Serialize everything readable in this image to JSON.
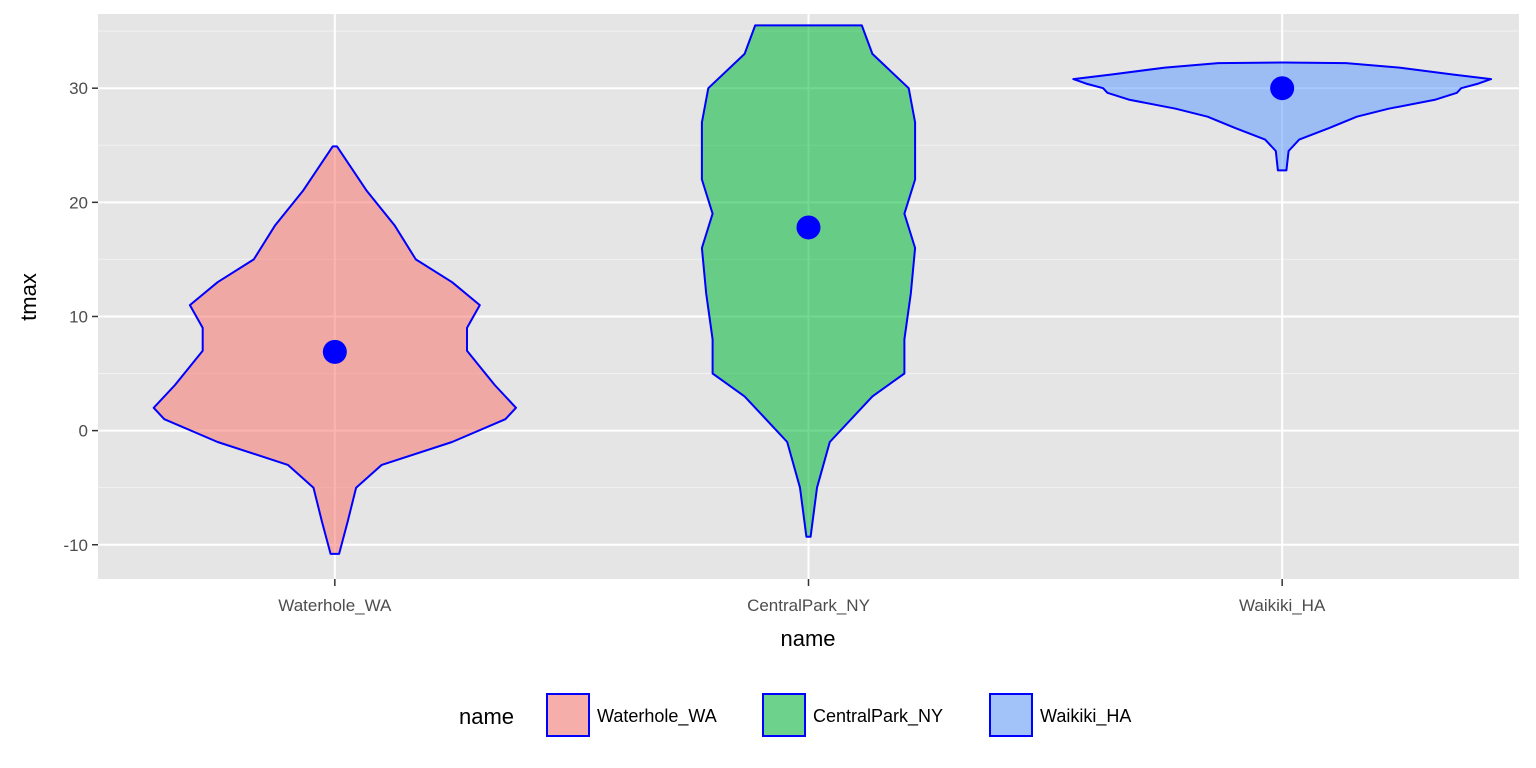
{
  "chart_data": {
    "type": "violin",
    "xlabel": "name",
    "ylabel": "tmax",
    "ylim": [
      -13,
      36.5
    ],
    "y_ticks": [
      -10,
      0,
      10,
      20,
      30
    ],
    "y_tick_labels": [
      "-10",
      "0",
      "10",
      "20",
      "30"
    ],
    "categories": [
      "Waterhole_WA",
      "CentralPark_NY",
      "Waikiki_HA"
    ],
    "series": [
      {
        "name": "Waterhole_WA",
        "fill": "#F8766D",
        "median": 6.9,
        "density": [
          [
            -10.8,
            0.02
          ],
          [
            -8,
            0.06
          ],
          [
            -5,
            0.1
          ],
          [
            -3,
            0.22
          ],
          [
            -1,
            0.55
          ],
          [
            1,
            0.8
          ],
          [
            2,
            0.85
          ],
          [
            4,
            0.75
          ],
          [
            7,
            0.62
          ],
          [
            9,
            0.62
          ],
          [
            11,
            0.68
          ],
          [
            13,
            0.55
          ],
          [
            15,
            0.38
          ],
          [
            18,
            0.28
          ],
          [
            21,
            0.15
          ],
          [
            24.9,
            0.01
          ]
        ]
      },
      {
        "name": "CentralPark_NY",
        "fill": "#00BA38",
        "median": 17.8,
        "density": [
          [
            -9.3,
            0.01
          ],
          [
            -5,
            0.04
          ],
          [
            -1,
            0.1
          ],
          [
            3,
            0.3
          ],
          [
            5,
            0.45
          ],
          [
            8,
            0.45
          ],
          [
            12,
            0.48
          ],
          [
            16,
            0.5
          ],
          [
            19,
            0.45
          ],
          [
            22,
            0.5
          ],
          [
            27,
            0.5
          ],
          [
            30,
            0.47
          ],
          [
            33,
            0.3
          ],
          [
            35.5,
            0.25
          ]
        ]
      },
      {
        "name": "Waikiki_HA",
        "fill": "#619CFF",
        "median": 30,
        "density": [
          [
            22.8,
            0.02
          ],
          [
            24.5,
            0.03
          ],
          [
            25.5,
            0.08
          ],
          [
            26.5,
            0.22
          ],
          [
            27.5,
            0.35
          ],
          [
            28.2,
            0.5
          ],
          [
            29,
            0.72
          ],
          [
            29.6,
            0.82
          ],
          [
            30,
            0.84
          ],
          [
            30.4,
            0.92
          ],
          [
            30.8,
            0.98
          ],
          [
            31.2,
            0.8
          ],
          [
            31.8,
            0.55
          ],
          [
            32.2,
            0.3
          ],
          [
            32.25,
            0
          ]
        ]
      }
    ],
    "outline_color": "#0000FF",
    "point_color": "#0000FF",
    "panel_background": "#E5E5E5",
    "grid": true,
    "legend": {
      "title": "name",
      "position": "bottom",
      "items": [
        "Waterhole_WA",
        "CentralPark_NY",
        "Waikiki_HA"
      ]
    }
  }
}
